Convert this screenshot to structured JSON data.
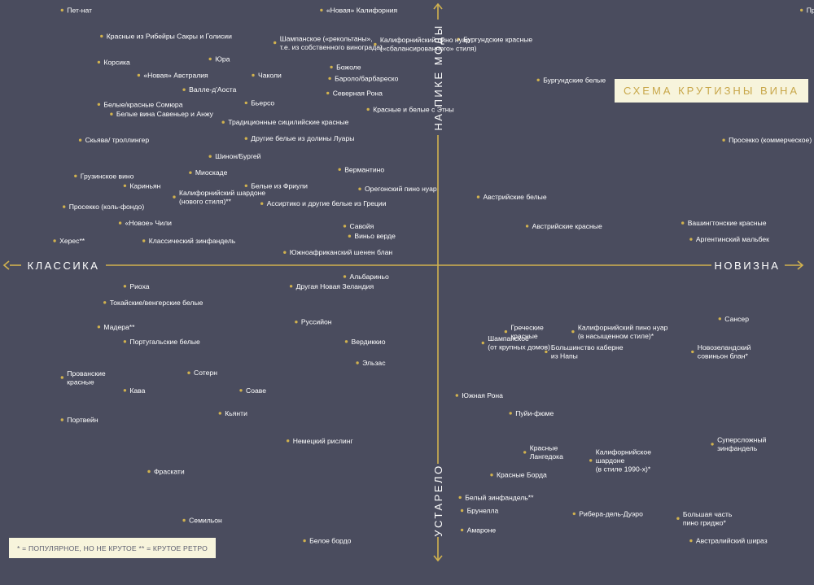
{
  "chart_data": {
    "type": "scatter",
    "title": "СХЕМА КРУТИЗНЫ ВИНА",
    "xlabel_left": "КЛАССИКА",
    "xlabel_right": "НОВИЗНА",
    "ylabel_top": "НА ПИКЕ МОДЫ",
    "ylabel_bottom": "УСТАРЕЛО",
    "xlim": [
      -100,
      100
    ],
    "ylim": [
      -100,
      100
    ],
    "grid": false,
    "legend": "* = ПОПУЛЯРНОЕ, НО НЕ КРУТОЕ ** = КРУТОЕ РЕТРО",
    "points": [
      {
        "label": [
          "Пет-нат"
        ],
        "x": -95.2,
        "y": 97.2
      },
      {
        "label": [
          "«Новая» Калифорния"
        ],
        "x": -29.5,
        "y": 97.2
      },
      {
        "label": [
          "Провансальское розе"
        ],
        "x": 92.1,
        "y": 97.2
      },
      {
        "label": [
          "Красные из Рибейры Сакры и Голисии"
        ],
        "x": -85.2,
        "y": 87.3
      },
      {
        "label": [
          "Бургундские красные"
        ],
        "x": 5.2,
        "y": 86.1
      },
      {
        "label": [
          "Шампанское («рекольтаны»,",
          "т.е. из собственного винограда)"
        ],
        "x": -41.3,
        "y": 84.8
      },
      {
        "label": [
          "Калифорнийский пино нуар",
          "(«сбалансированного» стиля)"
        ],
        "x": -15.9,
        "y": 84.2
      },
      {
        "label": [
          "Корсика"
        ],
        "x": -85.9,
        "y": 77.4
      },
      {
        "label": [
          "Юра"
        ],
        "x": -57.7,
        "y": 78.6
      },
      {
        "label": [
          "Божоле"
        ],
        "x": -27.0,
        "y": 75.5
      },
      {
        "label": [
          "«Новая» Австралия"
        ],
        "x": -75.8,
        "y": 72.4
      },
      {
        "label": [
          "Чаколи"
        ],
        "x": -46.8,
        "y": 72.4
      },
      {
        "label": [
          "Бароло/барбареско"
        ],
        "x": -27.4,
        "y": 71.2
      },
      {
        "label": [
          "Бургундские белые"
        ],
        "x": 25.4,
        "y": 70.6
      },
      {
        "label": [
          "Валле-д'Аоста"
        ],
        "x": -64.3,
        "y": 66.9
      },
      {
        "label": [
          "Северная Рона"
        ],
        "x": -27.9,
        "y": 65.6
      },
      {
        "label": [
          "Белые/красные Сомюра"
        ],
        "x": -85.9,
        "y": 61.3
      },
      {
        "label": [
          "Бьерсо"
        ],
        "x": -48.6,
        "y": 61.9
      },
      {
        "label": [
          "Красные и белые с Этны"
        ],
        "x": -17.7,
        "y": 59.4
      },
      {
        "label": [
          "Белые вина Савеньер и Анжу"
        ],
        "x": -82.7,
        "y": 57.6
      },
      {
        "label": [
          "Традиционные сицилийские красные"
        ],
        "x": -54.4,
        "y": 54.5
      },
      {
        "label": [
          "Скьява/ троллингер"
        ],
        "x": -90.6,
        "y": 47.7
      },
      {
        "label": [
          "Другие белые из долины Луары"
        ],
        "x": -48.6,
        "y": 48.3
      },
      {
        "label": [
          "Просекко (коммерческое)"
        ],
        "x": 72.4,
        "y": 47.7
      },
      {
        "label": [
          "Шинон/Бургей"
        ],
        "x": -57.7,
        "y": 41.5
      },
      {
        "label": [
          "Вермантино"
        ],
        "x": -24.9,
        "y": 36.5
      },
      {
        "label": [
          "Миоскаде"
        ],
        "x": -62.7,
        "y": 35.3
      },
      {
        "label": [
          "Грузинское вино"
        ],
        "x": -91.8,
        "y": 34.0
      },
      {
        "label": [
          "Кариньян"
        ],
        "x": -79.3,
        "y": 30.3
      },
      {
        "label": [
          "Белые из Фриули"
        ],
        "x": -48.6,
        "y": 30.3
      },
      {
        "label": [
          "Орегонский пино нуар"
        ],
        "x": -19.8,
        "y": 29.1
      },
      {
        "label": [
          "Калифорнийский шардоне",
          "(нового стиля)**"
        ],
        "x": -66.8,
        "y": 26.0
      },
      {
        "label": [
          "Австрийские белые"
        ],
        "x": 10.2,
        "y": 26.0
      },
      {
        "label": [
          "Ассиртико и другие белые из Греции"
        ],
        "x": -44.6,
        "y": 23.5
      },
      {
        "label": [
          "Просекко (коль-фондо)"
        ],
        "x": -94.7,
        "y": 22.3
      },
      {
        "label": [
          "Вашингтонские красные"
        ],
        "x": 62.0,
        "y": 16.1
      },
      {
        "label": [
          "«Новое» Чили"
        ],
        "x": -80.5,
        "y": 16.1
      },
      {
        "label": [
          "Савойя"
        ],
        "x": -23.6,
        "y": 14.9
      },
      {
        "label": [
          "Австрийские красные"
        ],
        "x": 22.6,
        "y": 14.9
      },
      {
        "label": [
          "Виньо верде"
        ],
        "x": -22.4,
        "y": 11.1
      },
      {
        "label": [
          "Херес**"
        ],
        "x": -97.1,
        "y": 9.3
      },
      {
        "label": [
          "Классический зинфандель"
        ],
        "x": -74.5,
        "y": 9.3
      },
      {
        "label": [
          "Аргентинский мальбек"
        ],
        "x": 64.1,
        "y": 9.9
      },
      {
        "label": [
          "Южноафриканский шенен блан"
        ],
        "x": -38.8,
        "y": 4.9
      },
      {
        "label": [
          "Альбариньо"
        ],
        "x": -23.6,
        "y": -4.3
      },
      {
        "label": [
          "Другая Новая Зеландия"
        ],
        "x": -37.2,
        "y": -8.0
      },
      {
        "label": [
          "Риоха"
        ],
        "x": -79.3,
        "y": -8.0
      },
      {
        "label": [
          "Токайские/венгерские белые"
        ],
        "x": -84.4,
        "y": -14.2
      },
      {
        "label": [
          "Сансер"
        ],
        "x": 71.4,
        "y": -20.4
      },
      {
        "label": [
          "Руссийон"
        ],
        "x": -35.9,
        "y": -21.6
      },
      {
        "label": [
          "Мадера**"
        ],
        "x": -85.9,
        "y": -23.5
      },
      {
        "label": [
          "Греческие",
          "красные"
        ],
        "x": 17.2,
        "y": -25.3
      },
      {
        "label": [
          "Калифорнийский пино нуар",
          "(в насыщенном стиле)*"
        ],
        "x": 34.2,
        "y": -25.3
      },
      {
        "label": [
          "Португальские белые"
        ],
        "x": -79.3,
        "y": -29.1
      },
      {
        "label": [
          "Вердиккио"
        ],
        "x": -23.2,
        "y": -29.1
      },
      {
        "label": [
          "Шампанское",
          "(от крупных домов)"
        ],
        "x": 11.4,
        "y": -29.6
      },
      {
        "label": [
          "Новозеландский",
          "совиньон блан*"
        ],
        "x": 64.5,
        "y": -33.0
      },
      {
        "label": [
          "Большинство каберне",
          "из Напы"
        ],
        "x": 27.4,
        "y": -33.0
      },
      {
        "label": [
          "Эльзас"
        ],
        "x": -20.4,
        "y": -37.2
      },
      {
        "label": [
          "Сотерн"
        ],
        "x": -63.1,
        "y": -41.0
      },
      {
        "label": [
          "Прованские",
          "красные"
        ],
        "x": -95.2,
        "y": -42.8
      },
      {
        "label": [
          "Кава"
        ],
        "x": -79.3,
        "y": -47.7
      },
      {
        "label": [
          "Соаве"
        ],
        "x": -49.9,
        "y": -47.7
      },
      {
        "label": [
          "Южная Рона"
        ],
        "x": 4.8,
        "y": -49.6
      },
      {
        "label": [
          "Кьянти"
        ],
        "x": -55.2,
        "y": -56.4
      },
      {
        "label": [
          "Пуйи-фюме"
        ],
        "x": 18.4,
        "y": -56.4
      },
      {
        "label": [
          "Портвейн"
        ],
        "x": -95.2,
        "y": -58.9
      },
      {
        "label": [
          "Немецкий рислинг"
        ],
        "x": -38.0,
        "y": -66.9
      },
      {
        "label": [
          "Суперсложный",
          "зинфандель"
        ],
        "x": 69.5,
        "y": -68.2
      },
      {
        "label": [
          "Красные",
          "Лангедока"
        ],
        "x": 22.0,
        "y": -71.3
      },
      {
        "label": [
          "Калифорнийское",
          "шардоне",
          "(в стиле 1990-х)*"
        ],
        "x": 38.7,
        "y": -74.4
      },
      {
        "label": [
          "Фраскати"
        ],
        "x": -73.2,
        "y": -78.6
      },
      {
        "label": [
          "Красные Борда"
        ],
        "x": 13.6,
        "y": -79.9
      },
      {
        "label": [
          "Белый зинфандель**"
        ],
        "x": 5.6,
        "y": -88.5
      },
      {
        "label": [
          "Брунелла"
        ],
        "x": 6.1,
        "y": -93.5
      },
      {
        "label": [
          "Рибера-дель-Дуэро"
        ],
        "x": 34.5,
        "y": -94.7
      },
      {
        "label": [
          "Большая часть",
          "пино гриджо*"
        ],
        "x": 60.8,
        "y": -96.5
      },
      {
        "label": [
          "Семильон"
        ],
        "x": -64.3,
        "y": -97.2
      },
      {
        "label": [
          "Амароне"
        ],
        "x": 6.1,
        "y": -100.9
      },
      {
        "label": [
          "Белое бордо"
        ],
        "x": -33.8,
        "y": -105.0
      },
      {
        "label": [
          "Австралийский шираз"
        ],
        "x": 64.1,
        "y": -105.0
      }
    ]
  }
}
